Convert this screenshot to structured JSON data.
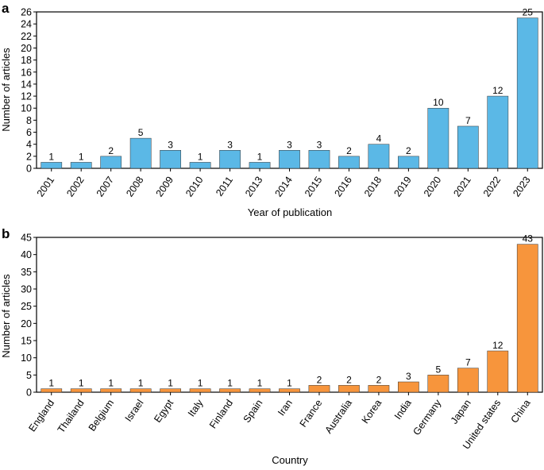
{
  "chart_data": [
    {
      "panel_label": "a",
      "type": "bar",
      "title": "",
      "xlabel": "Year of publication",
      "ylabel": "Number of articles",
      "ylim": [
        0,
        26
      ],
      "yticks": [
        0,
        2,
        4,
        6,
        8,
        10,
        12,
        14,
        16,
        18,
        20,
        22,
        24,
        26
      ],
      "grid": false,
      "color": "#5BB8E6",
      "categories": [
        "2001",
        "2002",
        "2007",
        "2008",
        "2009",
        "2010",
        "2011",
        "2013",
        "2014",
        "2015",
        "2016",
        "2018",
        "2019",
        "2020",
        "2021",
        "2022",
        "2023"
      ],
      "values": [
        1,
        1,
        2,
        5,
        3,
        1,
        3,
        1,
        3,
        3,
        2,
        4,
        2,
        10,
        7,
        12,
        25
      ]
    },
    {
      "panel_label": "b",
      "type": "bar",
      "title": "",
      "xlabel": "Country",
      "ylabel": "Number of articles",
      "ylim": [
        0,
        45
      ],
      "yticks": [
        0,
        5,
        10,
        15,
        20,
        25,
        30,
        35,
        40,
        45
      ],
      "grid": false,
      "color": "#F7953C",
      "categories": [
        "England",
        "Thailand",
        "Belgium",
        "Israel",
        "Egypt",
        "Italy",
        "Finland",
        "Spain",
        "Iran",
        "France",
        "Australia",
        "Korea",
        "India",
        "Germany",
        "Japan",
        "United states",
        "China"
      ],
      "values": [
        1,
        1,
        1,
        1,
        1,
        1,
        1,
        1,
        1,
        2,
        2,
        2,
        3,
        5,
        7,
        12,
        43
      ]
    }
  ]
}
